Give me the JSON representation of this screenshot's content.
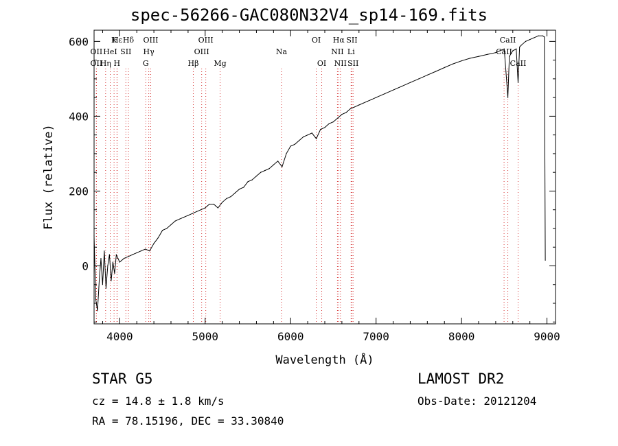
{
  "title": "spec-56266-GAC080N32V4_sp14-169.fits",
  "info": {
    "object_class": "STAR    G5",
    "survey": "LAMOST DR2",
    "cz": "cz = 14.8 ± 1.8 km/s",
    "obs_date": "Obs-Date: 20121204",
    "radec": "RA =  78.15196, DEC =  33.30840"
  },
  "chart_data": {
    "type": "line",
    "title": "spec-56266-GAC080N32V4_sp14-169.fits",
    "xlabel": "Wavelength (Å)",
    "ylabel": "Flux (relative)",
    "xlim": [
      3700,
      9100
    ],
    "ylim": [
      -155,
      630
    ],
    "x_ticks": [
      4000,
      5000,
      6000,
      7000,
      8000,
      9000
    ],
    "y_ticks": [
      0,
      200,
      400,
      600
    ],
    "series": [
      {
        "points": [
          [
            3700,
            80
          ],
          [
            3720,
            -90
          ],
          [
            3740,
            -120
          ],
          [
            3760,
            -40
          ],
          [
            3780,
            20
          ],
          [
            3800,
            -50
          ],
          [
            3820,
            40
          ],
          [
            3840,
            -60
          ],
          [
            3860,
            0
          ],
          [
            3880,
            30
          ],
          [
            3900,
            -40
          ],
          [
            3920,
            10
          ],
          [
            3940,
            -20
          ],
          [
            3960,
            30
          ],
          [
            3980,
            20
          ],
          [
            4000,
            10
          ],
          [
            4050,
            20
          ],
          [
            4100,
            25
          ],
          [
            4150,
            30
          ],
          [
            4200,
            35
          ],
          [
            4250,
            40
          ],
          [
            4300,
            45
          ],
          [
            4350,
            40
          ],
          [
            4400,
            60
          ],
          [
            4450,
            75
          ],
          [
            4500,
            95
          ],
          [
            4550,
            100
          ],
          [
            4600,
            110
          ],
          [
            4650,
            120
          ],
          [
            4700,
            125
          ],
          [
            4750,
            130
          ],
          [
            4800,
            135
          ],
          [
            4850,
            140
          ],
          [
            4900,
            145
          ],
          [
            4950,
            150
          ],
          [
            5000,
            155
          ],
          [
            5050,
            165
          ],
          [
            5100,
            165
          ],
          [
            5150,
            155
          ],
          [
            5200,
            170
          ],
          [
            5250,
            180
          ],
          [
            5300,
            185
          ],
          [
            5350,
            195
          ],
          [
            5400,
            205
          ],
          [
            5450,
            210
          ],
          [
            5500,
            225
          ],
          [
            5550,
            230
          ],
          [
            5600,
            240
          ],
          [
            5650,
            250
          ],
          [
            5700,
            255
          ],
          [
            5750,
            260
          ],
          [
            5800,
            270
          ],
          [
            5850,
            280
          ],
          [
            5900,
            265
          ],
          [
            5950,
            300
          ],
          [
            6000,
            320
          ],
          [
            6050,
            325
          ],
          [
            6100,
            335
          ],
          [
            6150,
            345
          ],
          [
            6200,
            350
          ],
          [
            6250,
            355
          ],
          [
            6300,
            340
          ],
          [
            6350,
            365
          ],
          [
            6400,
            370
          ],
          [
            6450,
            380
          ],
          [
            6500,
            385
          ],
          [
            6550,
            395
          ],
          [
            6600,
            405
          ],
          [
            6650,
            410
          ],
          [
            6700,
            420
          ],
          [
            6750,
            425
          ],
          [
            6800,
            430
          ],
          [
            6850,
            435
          ],
          [
            6900,
            440
          ],
          [
            6950,
            445
          ],
          [
            7000,
            450
          ],
          [
            7100,
            460
          ],
          [
            7200,
            470
          ],
          [
            7300,
            480
          ],
          [
            7400,
            490
          ],
          [
            7500,
            500
          ],
          [
            7600,
            510
          ],
          [
            7700,
            520
          ],
          [
            7800,
            530
          ],
          [
            7900,
            540
          ],
          [
            8000,
            548
          ],
          [
            8100,
            555
          ],
          [
            8200,
            560
          ],
          [
            8300,
            565
          ],
          [
            8400,
            570
          ],
          [
            8450,
            575
          ],
          [
            8500,
            580
          ],
          [
            8520,
            520
          ],
          [
            8542,
            450
          ],
          [
            8560,
            560
          ],
          [
            8600,
            575
          ],
          [
            8640,
            580
          ],
          [
            8662,
            490
          ],
          [
            8680,
            585
          ],
          [
            8700,
            590
          ],
          [
            8750,
            600
          ],
          [
            8800,
            605
          ],
          [
            8850,
            610
          ],
          [
            8900,
            615
          ],
          [
            8950,
            615
          ],
          [
            8970,
            612
          ],
          [
            8980,
            15
          ]
        ]
      }
    ],
    "line_markers": [
      {
        "label": "Hε",
        "wavelength": 3970,
        "row": 0
      },
      {
        "label": "K",
        "wavelength": 3934,
        "row": 0
      },
      {
        "label": "Hδ",
        "wavelength": 4102,
        "row": 0
      },
      {
        "label": "OII",
        "wavelength": 3727,
        "row": 1
      },
      {
        "label": "HeI",
        "wavelength": 3889,
        "row": 1
      },
      {
        "label": "SII",
        "wavelength": 4072,
        "row": 1
      },
      {
        "label": "OIII",
        "wavelength": 4363,
        "row": 0
      },
      {
        "label": "Hγ",
        "wavelength": 4340,
        "row": 1
      },
      {
        "label": "G",
        "wavelength": 4305,
        "row": 2
      },
      {
        "label": "OII",
        "wavelength": 3727,
        "row": 2
      },
      {
        "label": "Hη",
        "wavelength": 3835,
        "row": 2
      },
      {
        "label": "H",
        "wavelength": 3968,
        "row": 2
      },
      {
        "label": "OIII",
        "wavelength": 5007,
        "row": 0
      },
      {
        "label": "OIII",
        "wavelength": 4959,
        "row": 1
      },
      {
        "label": "Hβ",
        "wavelength": 4861,
        "row": 2
      },
      {
        "label": "Mg",
        "wavelength": 5175,
        "row": 2
      },
      {
        "label": "Na",
        "wavelength": 5893,
        "row": 1
      },
      {
        "label": "OI",
        "wavelength": 6300,
        "row": 0
      },
      {
        "label": "OI",
        "wavelength": 6364,
        "row": 2
      },
      {
        "label": "Hα",
        "wavelength": 6563,
        "row": 0
      },
      {
        "label": "SII",
        "wavelength": 6717,
        "row": 0
      },
      {
        "label": "NII",
        "wavelength": 6548,
        "row": 1
      },
      {
        "label": "Li",
        "wavelength": 6708,
        "row": 1
      },
      {
        "label": "NII",
        "wavelength": 6583,
        "row": 2
      },
      {
        "label": "SII",
        "wavelength": 6731,
        "row": 2
      },
      {
        "label": "CaII",
        "wavelength": 8542,
        "row": 0
      },
      {
        "label": "CaII",
        "wavelength": 8498,
        "row": 1
      },
      {
        "label": "CaII",
        "wavelength": 8662,
        "row": 2
      }
    ],
    "colors": {
      "spectrum": "#000000",
      "marker_line": "#cc0000",
      "marker_dot": "#888888"
    }
  }
}
